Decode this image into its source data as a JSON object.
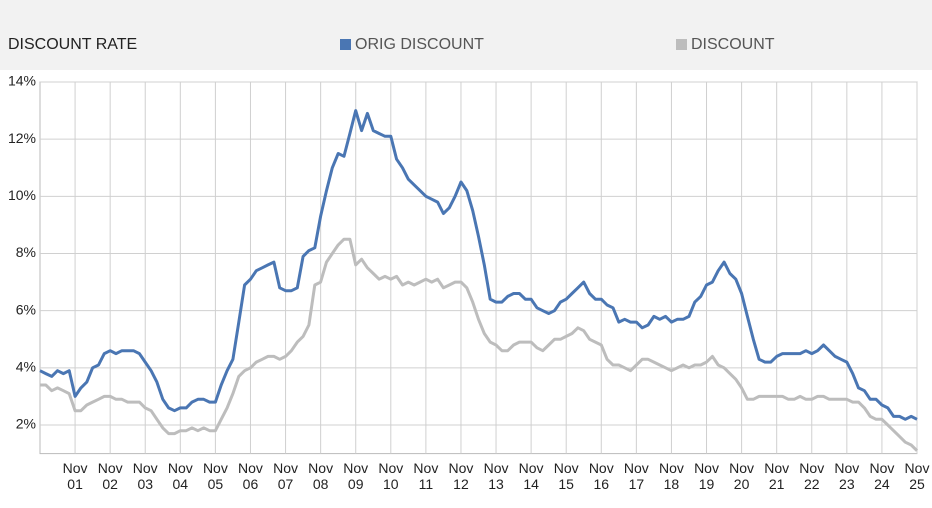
{
  "chart_data": {
    "type": "line",
    "title": "DISCOUNT RATE",
    "legend": "top",
    "categories": [
      null,
      null,
      null,
      null,
      null,
      null,
      "Nov\n01",
      null,
      null,
      null,
      null,
      null,
      "Nov\n02",
      null,
      null,
      null,
      null,
      null,
      "Nov\n03",
      null,
      null,
      null,
      null,
      null,
      "Nov\n04",
      null,
      null,
      null,
      null,
      null,
      "Nov\n05",
      null,
      null,
      null,
      null,
      null,
      "Nov\n06",
      null,
      null,
      null,
      null,
      null,
      "Nov\n07",
      null,
      null,
      null,
      null,
      null,
      "Nov\n08",
      null,
      null,
      null,
      null,
      null,
      "Nov\n09",
      null,
      null,
      null,
      null,
      null,
      "Nov\n10",
      null,
      null,
      null,
      null,
      null,
      "Nov\n11",
      null,
      null,
      null,
      null,
      null,
      "Nov\n12",
      null,
      null,
      null,
      null,
      null,
      "Nov\n13",
      null,
      null,
      null,
      null,
      null,
      "Nov\n14",
      null,
      null,
      null,
      null,
      null,
      "Nov\n15",
      null,
      null,
      null,
      null,
      null,
      "Nov\n16",
      null,
      null,
      null,
      null,
      null,
      "Nov\n17",
      null,
      null,
      null,
      null,
      null,
      "Nov\n18",
      null,
      null,
      null,
      null,
      null,
      "Nov\n19",
      null,
      null,
      null,
      null,
      null,
      "Nov\n20",
      null,
      null,
      null,
      null,
      null,
      "Nov\n21",
      null,
      null,
      null,
      null,
      null,
      "Nov\n22",
      null,
      null,
      null,
      null,
      null,
      "Nov\n23",
      null,
      null,
      null,
      null,
      null,
      "Nov\n24",
      null,
      null,
      null,
      null,
      null,
      "Nov\n25"
    ],
    "series": [
      {
        "name": "ORIG DISCOUNT",
        "color": "#4a76b3",
        "values": [
          3.9,
          3.8,
          3.7,
          3.9,
          3.8,
          3.9,
          3.0,
          3.3,
          3.5,
          4.0,
          4.1,
          4.5,
          4.6,
          4.5,
          4.6,
          4.6,
          4.6,
          4.5,
          4.2,
          3.9,
          3.5,
          2.9,
          2.6,
          2.5,
          2.6,
          2.6,
          2.8,
          2.9,
          2.9,
          2.8,
          2.8,
          3.4,
          3.9,
          4.3,
          5.6,
          6.9,
          7.1,
          7.4,
          7.5,
          7.6,
          7.7,
          6.8,
          6.7,
          6.7,
          6.8,
          7.9,
          8.1,
          8.2,
          9.3,
          10.2,
          11.0,
          11.5,
          11.4,
          12.2,
          13.0,
          12.3,
          12.9,
          12.3,
          12.2,
          12.1,
          12.1,
          11.3,
          11.0,
          10.6,
          10.4,
          10.2,
          10.0,
          9.9,
          9.8,
          9.4,
          9.6,
          10.0,
          10.5,
          10.2,
          9.5,
          8.6,
          7.6,
          6.4,
          6.3,
          6.3,
          6.5,
          6.6,
          6.6,
          6.4,
          6.4,
          6.1,
          6.0,
          5.9,
          6.0,
          6.3,
          6.4,
          6.6,
          6.8,
          7.0,
          6.6,
          6.4,
          6.4,
          6.2,
          6.1,
          5.6,
          5.7,
          5.6,
          5.6,
          5.4,
          5.5,
          5.8,
          5.7,
          5.8,
          5.6,
          5.7,
          5.7,
          5.8,
          6.3,
          6.5,
          6.9,
          7.0,
          7.4,
          7.7,
          7.3,
          7.1,
          6.6,
          5.8,
          5.0,
          4.3,
          4.2,
          4.2,
          4.4,
          4.5,
          4.5,
          4.5,
          4.5,
          4.6,
          4.5,
          4.6,
          4.8,
          4.6,
          4.4,
          4.3,
          4.2,
          3.8,
          3.3,
          3.2,
          2.9,
          2.9,
          2.7,
          2.6,
          2.3,
          2.3,
          2.2,
          2.3,
          2.2
        ]
      },
      {
        "name": "DISCOUNT",
        "color": "#bdbdbd",
        "values": [
          3.4,
          3.4,
          3.2,
          3.3,
          3.2,
          3.1,
          2.5,
          2.5,
          2.7,
          2.8,
          2.9,
          3.0,
          3.0,
          2.9,
          2.9,
          2.8,
          2.8,
          2.8,
          2.6,
          2.5,
          2.2,
          1.9,
          1.7,
          1.7,
          1.8,
          1.8,
          1.9,
          1.8,
          1.9,
          1.8,
          1.8,
          2.2,
          2.6,
          3.1,
          3.7,
          3.9,
          4.0,
          4.2,
          4.3,
          4.4,
          4.4,
          4.3,
          4.4,
          4.6,
          4.9,
          5.1,
          5.5,
          6.9,
          7.0,
          7.7,
          8.0,
          8.3,
          8.5,
          8.5,
          7.6,
          7.8,
          7.5,
          7.3,
          7.1,
          7.2,
          7.1,
          7.2,
          6.9,
          7.0,
          6.9,
          7.0,
          7.1,
          7.0,
          7.1,
          6.8,
          6.9,
          7.0,
          7.0,
          6.8,
          6.3,
          5.7,
          5.2,
          4.9,
          4.8,
          4.6,
          4.6,
          4.8,
          4.9,
          4.9,
          4.9,
          4.7,
          4.6,
          4.8,
          5.0,
          5.0,
          5.1,
          5.2,
          5.4,
          5.3,
          5.0,
          4.9,
          4.8,
          4.3,
          4.1,
          4.1,
          4.0,
          3.9,
          4.1,
          4.3,
          4.3,
          4.2,
          4.1,
          4.0,
          3.9,
          4.0,
          4.1,
          4.0,
          4.1,
          4.1,
          4.2,
          4.4,
          4.1,
          4.0,
          3.8,
          3.6,
          3.3,
          2.9,
          2.9,
          3.0,
          3.0,
          3.0,
          3.0,
          3.0,
          2.9,
          2.9,
          3.0,
          2.9,
          2.9,
          3.0,
          3.0,
          2.9,
          2.9,
          2.9,
          2.9,
          2.8,
          2.8,
          2.6,
          2.3,
          2.2,
          2.2,
          2.0,
          1.8,
          1.6,
          1.4,
          1.3,
          1.1
        ]
      }
    ],
    "ylim": [
      1,
      14
    ],
    "yticks": [
      {
        "value": 2,
        "label": "2%"
      },
      {
        "value": 4,
        "label": "4%"
      },
      {
        "value": 6,
        "label": "6%"
      },
      {
        "value": 8,
        "label": "8%"
      },
      {
        "value": 10,
        "label": "10%"
      },
      {
        "value": 12,
        "label": "12%"
      },
      {
        "value": 14,
        "label": "14%"
      }
    ],
    "grid": true
  }
}
